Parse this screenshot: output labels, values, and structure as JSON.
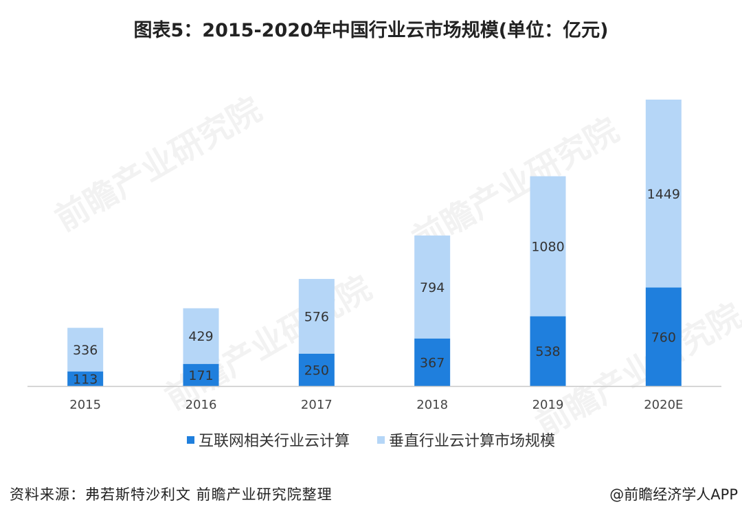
{
  "title": "图表5：2015-2020年中国行业云市场规模(单位：亿元)",
  "watermark": "前瞻产业研究院",
  "source": "资料来源：弗若斯特沙利文 前瞻产业研究院整理",
  "credit": "@前瞻经济学人APP",
  "colors": {
    "series_bottom": "#1f7fdd",
    "series_top": "#b5d6f7",
    "axis": "#c8c8c8"
  },
  "chart_data": {
    "type": "bar",
    "stacked": true,
    "title": "图表5：2015-2020年中国行业云市场规模(单位：亿元)",
    "categories": [
      "2015",
      "2016",
      "2017",
      "2018",
      "2019",
      "2020E"
    ],
    "series": [
      {
        "name": "互联网相关行业云计算",
        "values": [
          113,
          171,
          250,
          367,
          538,
          760
        ]
      },
      {
        "name": "垂直行业云计算市场规模",
        "values": [
          336,
          429,
          576,
          794,
          1080,
          1449
        ]
      }
    ],
    "ylim": [
      0,
      2250
    ],
    "grid": false,
    "legend_position": "bottom"
  }
}
